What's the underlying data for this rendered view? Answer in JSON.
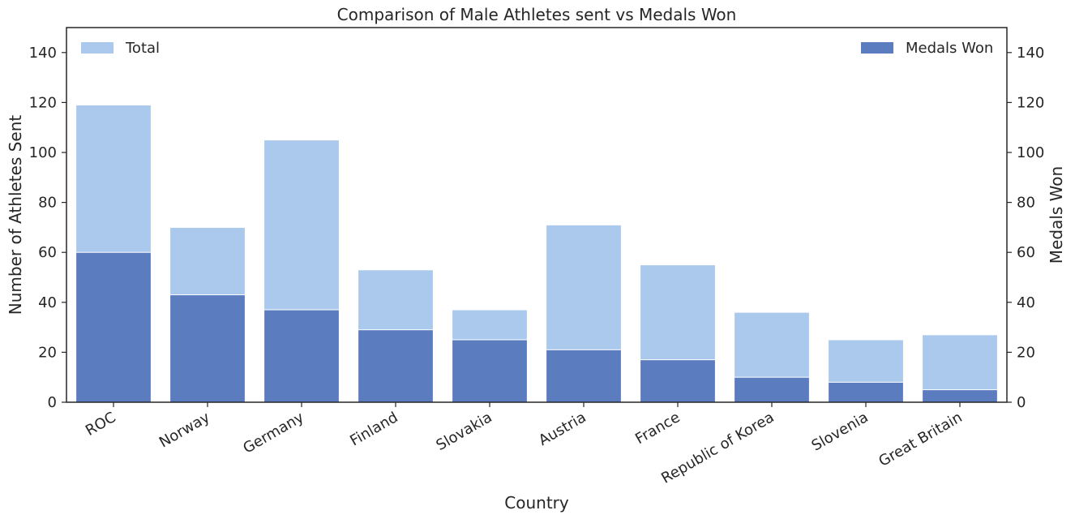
{
  "chart_data": {
    "type": "bar",
    "title": "Comparison of Male Athletes sent vs Medals Won",
    "xlabel": "Country",
    "ylabel": "Number of Athletes Sent",
    "ylabel_right": "Medals Won",
    "categories": [
      "ROC",
      "Norway",
      "Germany",
      "Finland",
      "Slovakia",
      "Austria",
      "France",
      "Republic of Korea",
      "Slovenia",
      "Great Britain"
    ],
    "series": [
      {
        "name": "Total",
        "axis": "left",
        "color": "#abc9ec",
        "values": [
          119,
          70,
          105,
          53,
          37,
          71,
          55,
          36,
          25,
          27
        ]
      },
      {
        "name": "Medals Won",
        "axis": "right",
        "color": "#5b7dc0",
        "values": [
          60,
          43,
          37,
          29,
          25,
          21,
          17,
          10,
          8,
          5
        ]
      }
    ],
    "ylim": [
      0,
      150
    ],
    "ylim_right": [
      0,
      150
    ],
    "yticks": [
      0,
      20,
      40,
      60,
      80,
      100,
      120,
      140
    ],
    "grid": false,
    "legend_left_position": "top-left",
    "legend_right_position": "top-right"
  }
}
